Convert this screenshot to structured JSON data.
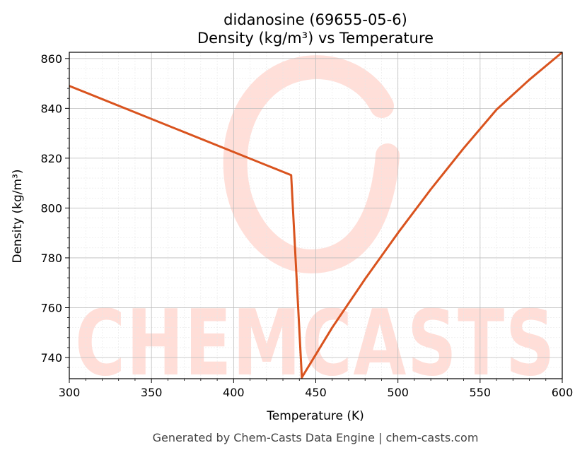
{
  "chart_data": {
    "type": "line",
    "title": "didanosine (69655-05-6)",
    "subtitle": "Density (kg/m³) vs Temperature",
    "xlabel": "Temperature (K)",
    "ylabel": "Density (kg/m³)",
    "xlim": [
      300,
      600
    ],
    "ylim": [
      731.5,
      862.5
    ],
    "xticks": [
      300,
      350,
      400,
      450,
      500,
      550,
      600
    ],
    "yticks": [
      740,
      760,
      780,
      800,
      820,
      840,
      860
    ],
    "grid": true,
    "series": [
      {
        "color": "#d9531e",
        "x": [
          300,
          435,
          441.5,
          460,
          480,
          500,
          520,
          540,
          560,
          580,
          600
        ],
        "y": [
          849,
          813.2,
          732,
          752,
          771.5,
          790,
          807.5,
          824,
          839.5,
          851.5,
          862.5
        ]
      }
    ]
  },
  "watermark": {
    "text": "CHEMCASTS",
    "color": "#ffd9d2"
  },
  "footer": "Generated by Chem-Casts Data Engine | chem-casts.com"
}
